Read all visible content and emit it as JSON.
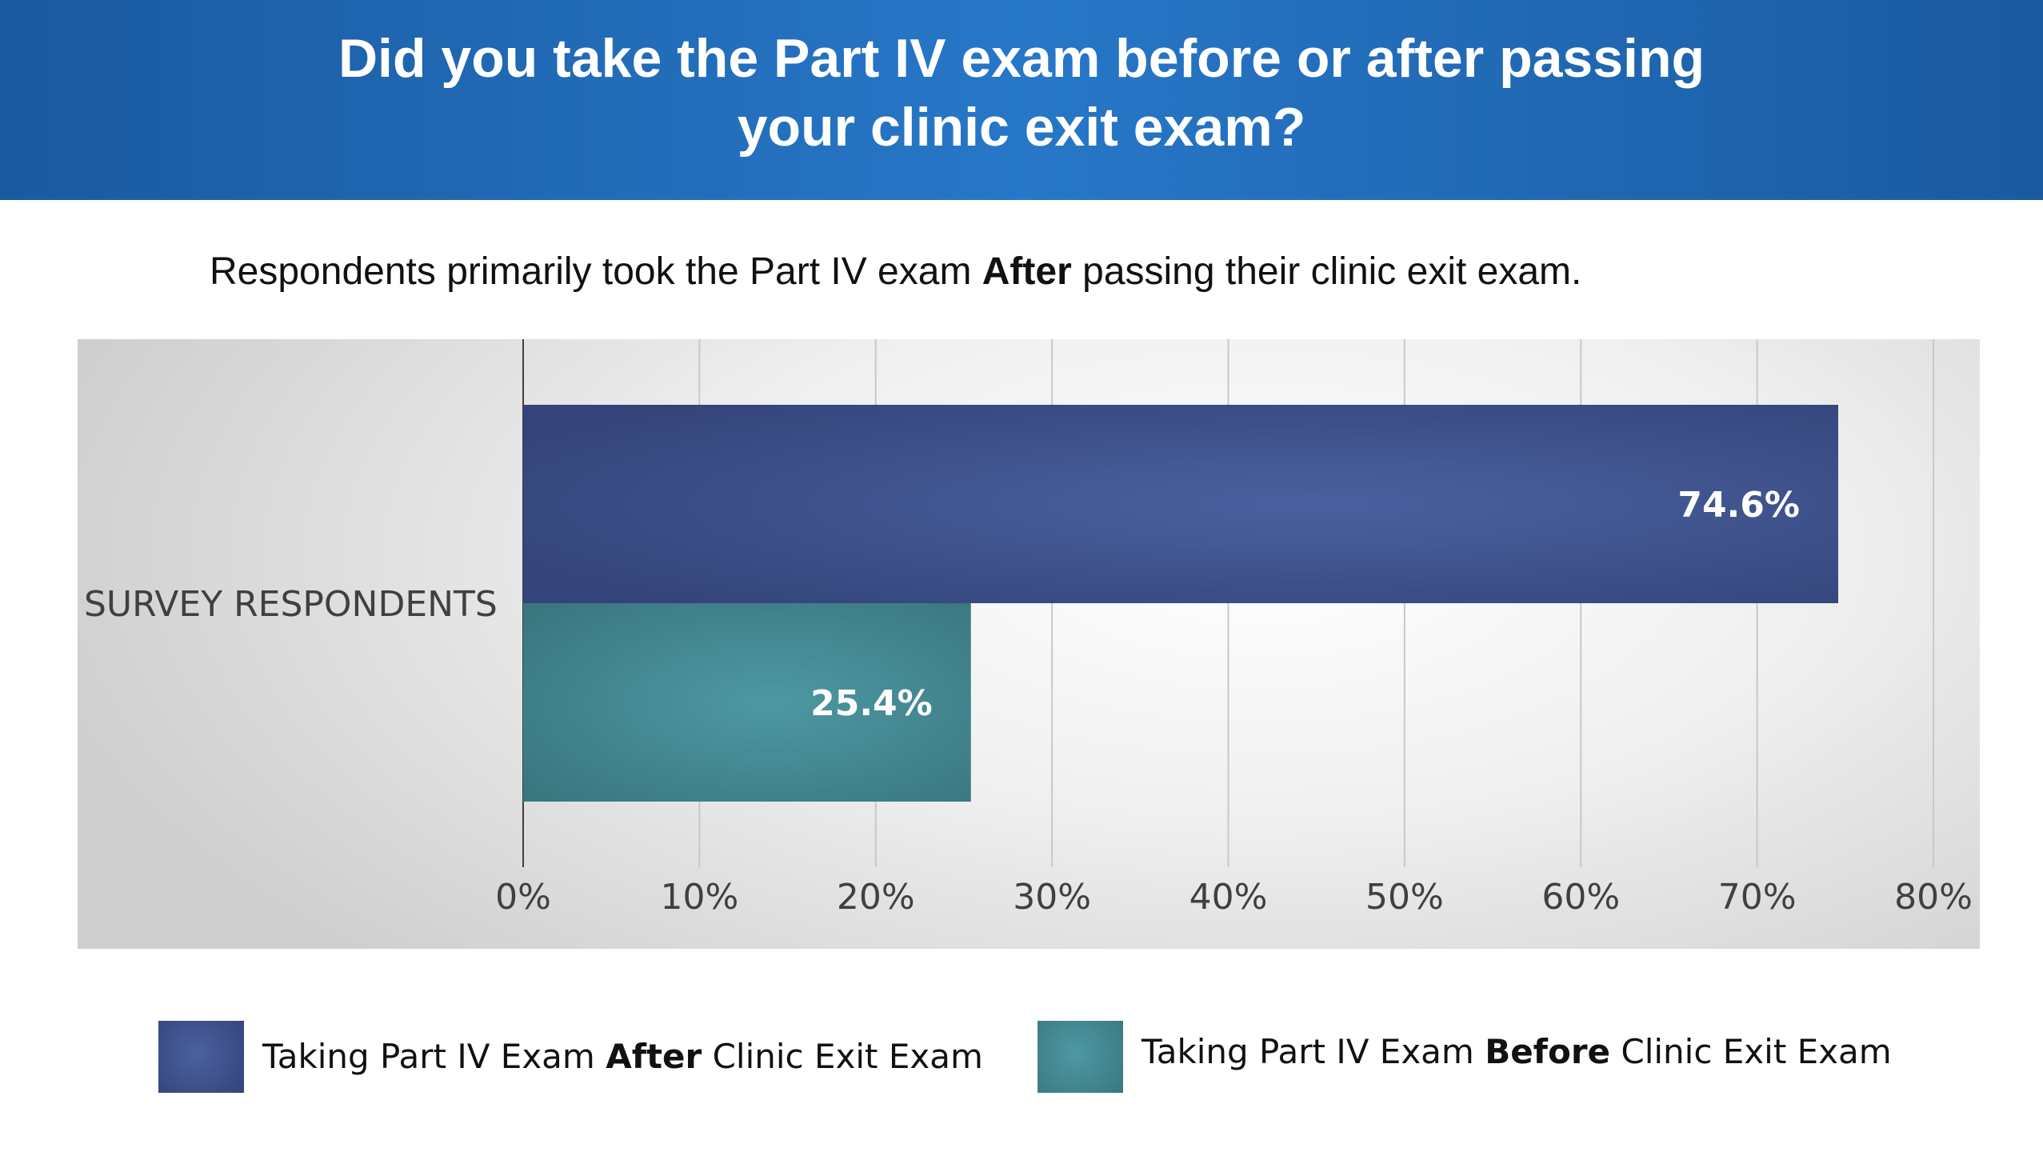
{
  "header": {
    "title_line1": "Did you take the Part IV exam before or after passing",
    "title_line2": "your clinic exit exam?"
  },
  "subtitle": {
    "before": "Respondents primarily took the Part IV exam ",
    "bold": "After",
    "after": " passing their clinic exit exam."
  },
  "chart_data": {
    "type": "bar",
    "orientation": "horizontal",
    "categories": [
      "SURVEY RESPONDENTS"
    ],
    "series": [
      {
        "name_parts": [
          "Taking Part IV Exam ",
          "After",
          " Clinic Exit Exam"
        ],
        "values": [
          74.6
        ],
        "label": "74.6%",
        "color": "#3d5090"
      },
      {
        "name_parts": [
          "Taking Part IV Exam ",
          "Before",
          " Clinic Exit Exam"
        ],
        "values": [
          25.4
        ],
        "label": "25.4%",
        "color": "#428891"
      }
    ],
    "xlim": [
      0,
      80
    ],
    "xticks": [
      0,
      10,
      20,
      30,
      40,
      50,
      60,
      70,
      80
    ],
    "xtick_labels": [
      "0%",
      "10%",
      "20%",
      "30%",
      "40%",
      "50%",
      "60%",
      "70%",
      "80%"
    ],
    "grid": true,
    "legend_position": "bottom"
  }
}
